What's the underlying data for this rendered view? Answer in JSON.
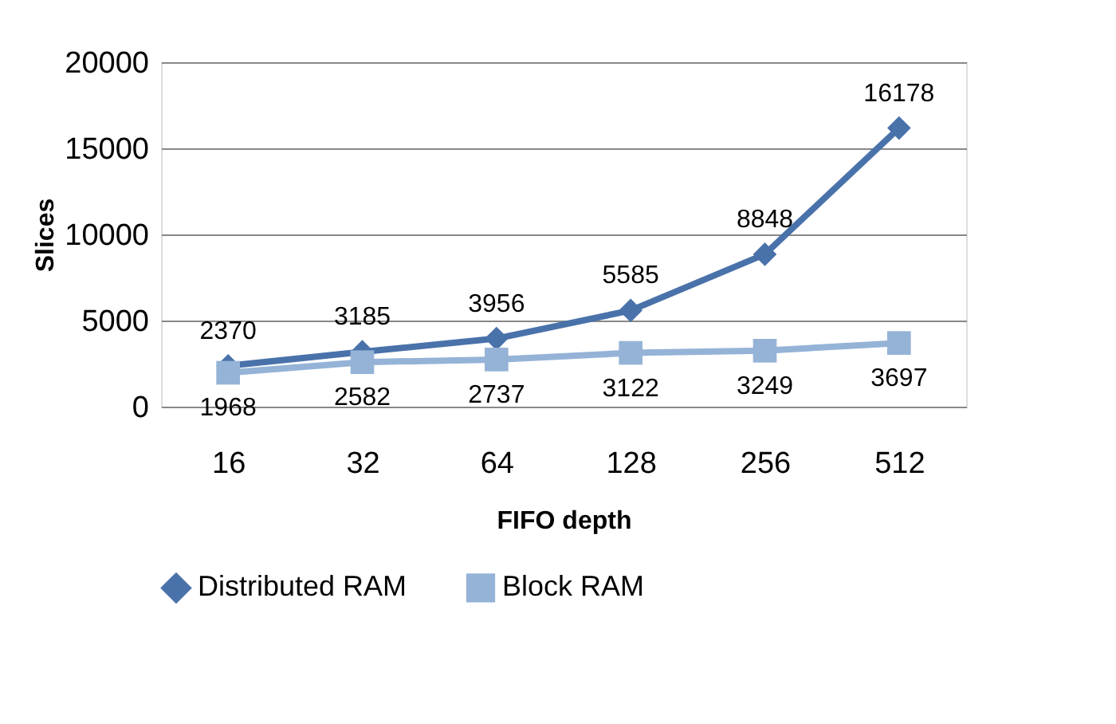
{
  "chart_data": {
    "type": "line",
    "xlabel": "FIFO depth",
    "ylabel": "Slices",
    "categories": [
      "16",
      "32",
      "64",
      "128",
      "256",
      "512"
    ],
    "series": [
      {
        "name": "Distributed RAM",
        "color": "#4a72aa",
        "marker": "diamond",
        "values": [
          2370,
          3185,
          3956,
          5585,
          8848,
          16178
        ]
      },
      {
        "name": "Block RAM",
        "color": "#95b3d7",
        "marker": "square",
        "values": [
          1968,
          2582,
          2737,
          3122,
          3249,
          3697
        ]
      }
    ],
    "ylim": [
      0,
      20000
    ],
    "yticks": [
      0,
      5000,
      10000,
      15000,
      20000
    ],
    "grid": "y",
    "legend": "bottom",
    "data_labels": true
  }
}
